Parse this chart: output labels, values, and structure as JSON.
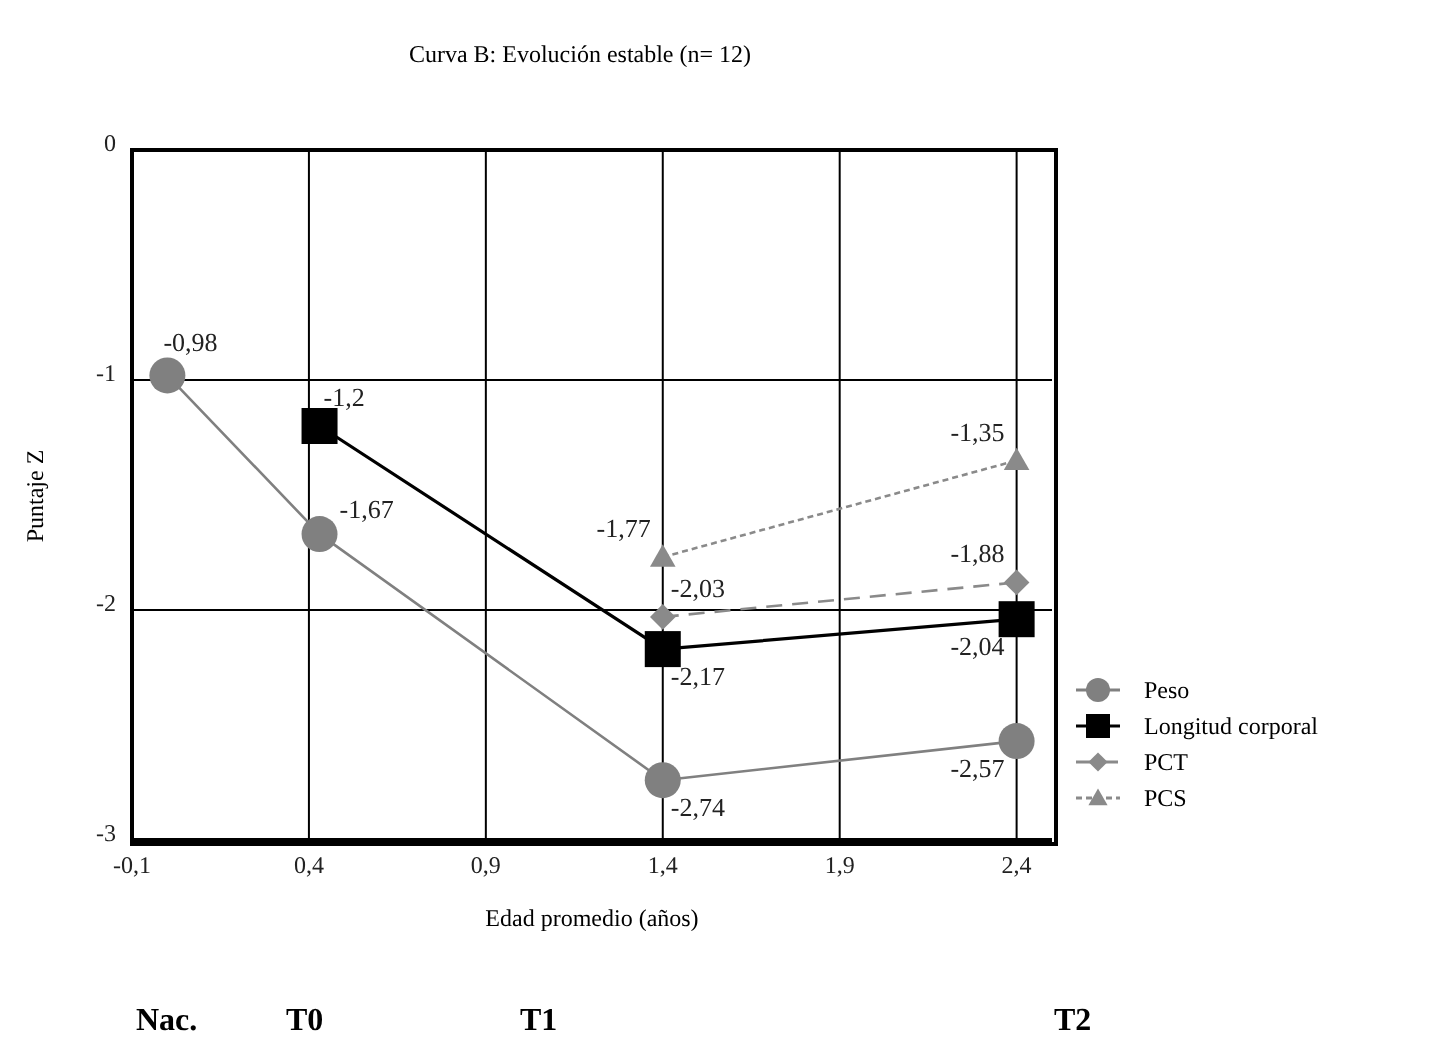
{
  "chart_data": {
    "type": "line",
    "title": "Curva B: Evolución estable (n= 12)",
    "xlabel": "Edad promedio (años)",
    "ylabel": "Puntaje Z",
    "xlim": [
      -0.1,
      2.5
    ],
    "xticks": [
      {
        "value": -0.1,
        "label": "-0,1"
      },
      {
        "value": 0.4,
        "label": "0,4"
      },
      {
        "value": 0.9,
        "label": "0,9"
      },
      {
        "value": 1.4,
        "label": "1,4"
      },
      {
        "value": 1.9,
        "label": "1,9"
      },
      {
        "value": 2.4,
        "label": "2,4"
      }
    ],
    "ylim": [
      -3,
      0
    ],
    "yticks": [
      0,
      -1,
      -2,
      -3
    ],
    "grid": true,
    "legend": "right",
    "series": [
      {
        "name": "Peso",
        "color": "#808080",
        "marker": "circle",
        "line_style": "solid",
        "x": [
          0,
          0.43,
          1.4,
          2.4
        ],
        "values": [
          -0.98,
          -1.67,
          -2.74,
          -2.57
        ],
        "value_labels": [
          "-0,98",
          "-1,67",
          "-2,74",
          "-2,57"
        ]
      },
      {
        "name": "Longitud corporal",
        "color": "#000000",
        "marker": "square",
        "line_style": "solid",
        "x": [
          0.43,
          1.4,
          2.4
        ],
        "values": [
          -1.2,
          -2.17,
          -2.04
        ],
        "value_labels": [
          "-1,2",
          "-2,17",
          "-2,04"
        ]
      },
      {
        "name": "PCT",
        "color": "#8a8a8a",
        "marker": "diamond",
        "line_style": "dashed",
        "x": [
          1.4,
          2.4
        ],
        "values": [
          -2.03,
          -1.88
        ],
        "value_labels": [
          "-2,03",
          "-1,88"
        ]
      },
      {
        "name": "PCS",
        "color": "#8a8a8a",
        "marker": "triangle",
        "line_style": "dotted",
        "x": [
          1.4,
          2.4
        ],
        "values": [
          -1.77,
          -1.35
        ],
        "value_labels": [
          "-1,77",
          "-1,35"
        ]
      }
    ],
    "annotations": [
      "Nac.",
      "T0",
      "T1",
      "T2"
    ]
  }
}
